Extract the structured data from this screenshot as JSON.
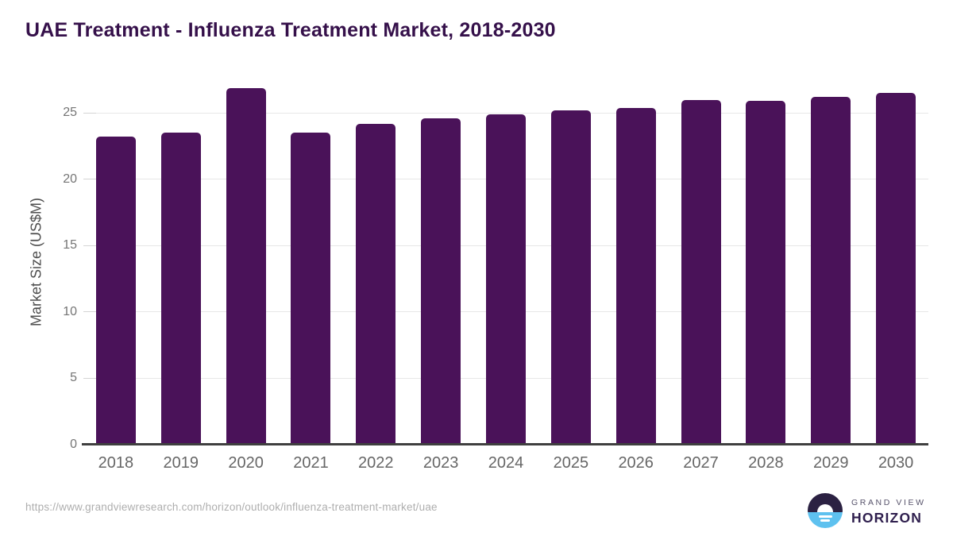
{
  "header": {
    "title": "UAE Treatment - Influenza Treatment Market, 2018-2030",
    "title_color": "#35104a"
  },
  "chart_data": {
    "type": "bar",
    "title": "UAE Treatment - Influenza Treatment Market, 2018-2030",
    "categories": [
      "2018",
      "2019",
      "2020",
      "2021",
      "2022",
      "2023",
      "2024",
      "2025",
      "2026",
      "2027",
      "2028",
      "2029",
      "2030"
    ],
    "values": [
      23.2,
      23.5,
      26.9,
      23.5,
      24.2,
      24.6,
      24.9,
      25.2,
      25.4,
      26.0,
      25.9,
      26.2,
      26.5
    ],
    "xlabel": "",
    "ylabel": "Market Size (US$M)",
    "ylim": [
      0,
      27.5
    ],
    "yticks": [
      0,
      5,
      10,
      15,
      20,
      25
    ],
    "grid": true,
    "legend": false,
    "bar_color": "#4a1259",
    "gridline_color": "#e7e7e7",
    "axis_line_color": "#3f3f3f",
    "tick_label_color": "#757575",
    "x_label_color": "#666666"
  },
  "footer": {
    "url": "https://www.grandviewresearch.com/horizon/outlook/influenza-treatment-market/uae",
    "logo": {
      "line1": "GRAND VIEW",
      "line2": "HORIZON",
      "circle_top_color": "#2b2142",
      "circle_bottom_color": "#5ec1ef"
    }
  }
}
